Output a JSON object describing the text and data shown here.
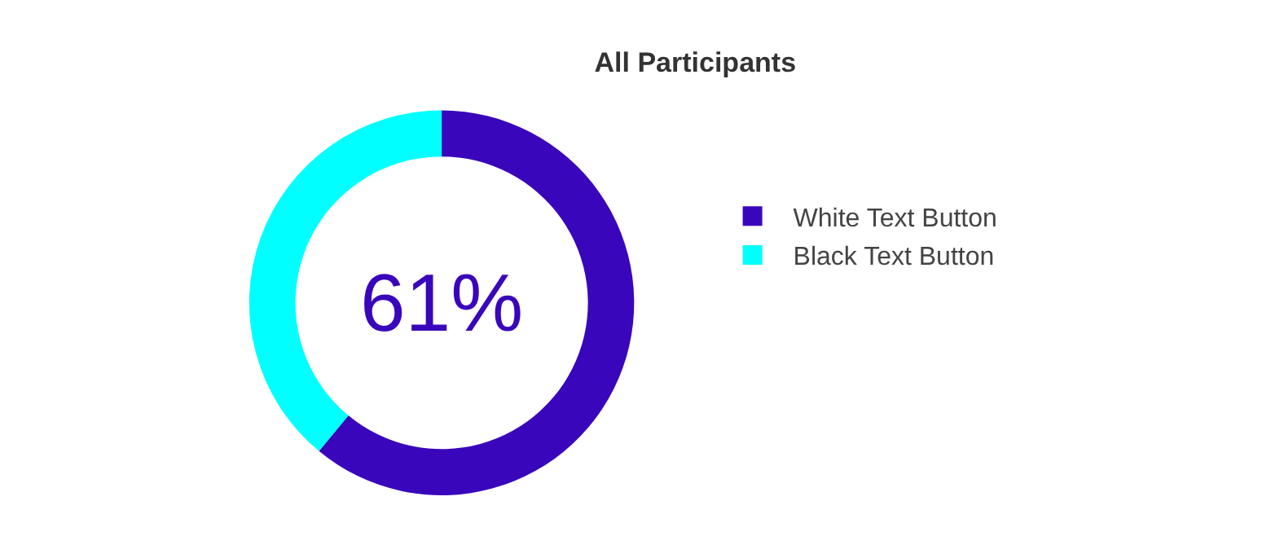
{
  "chart_data": {
    "type": "donut",
    "title": "All Participants",
    "categories": [
      "White Text Button",
      "Black Text Button"
    ],
    "values": [
      61,
      39
    ],
    "colors": [
      "#3a06bb",
      "#00ffff"
    ],
    "annotations": [
      "61%"
    ],
    "legend": "right"
  }
}
